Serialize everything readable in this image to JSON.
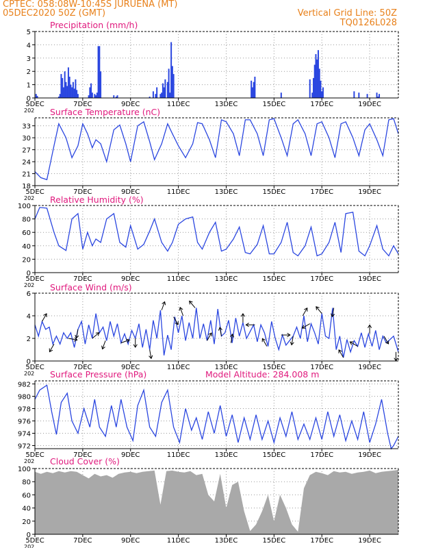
{
  "header": {
    "line1": "CPTEC:   058:08W-10:45S   JURUENA (MT)",
    "line2": "05DEC2020 50Z (GMT)",
    "right1": "Vertical Grid Line: 50Z",
    "right2": "TQ0126L028"
  },
  "model_altitude_text": "Model Altitude: 284.008 m",
  "colors": {
    "header": "#e8801a",
    "title": "#e0197d",
    "series": "#2a46e0",
    "cloud": "#a9a9a9"
  },
  "x_ticks": [
    "5DEC",
    "7DEC",
    "9DEC",
    "11DEC",
    "13DEC",
    "15DEC",
    "17DEC",
    "19DEC"
  ],
  "x_tick_stub": "202",
  "chart_data": [
    {
      "id": "precip",
      "type": "bar",
      "title": "Precipitation (mm/h)",
      "xlim": [
        5,
        20.2
      ],
      "ylim": [
        0,
        5
      ],
      "yticks": [
        0,
        1,
        2,
        3,
        4,
        5
      ],
      "x_unit": "day of Dec 2020",
      "x": [
        5.05,
        5.1,
        6.0,
        6.05,
        6.1,
        6.15,
        6.2,
        6.25,
        6.3,
        6.35,
        6.4,
        6.45,
        6.5,
        6.55,
        6.6,
        6.65,
        6.7,
        6.75,
        6.8,
        7.25,
        7.3,
        7.35,
        7.4,
        7.5,
        7.55,
        7.6,
        7.65,
        7.7,
        7.75,
        8.3,
        8.4,
        8.45,
        9.8,
        9.95,
        10.05,
        10.1,
        10.25,
        10.3,
        10.35,
        10.4,
        10.45,
        10.55,
        10.6,
        10.65,
        10.7,
        10.75,
        10.8,
        14.05,
        14.1,
        14.15,
        14.2,
        15.3,
        16.5,
        16.6,
        16.65,
        16.7,
        16.75,
        16.8,
        16.85,
        16.9,
        16.95,
        17.0,
        17.05,
        18.35,
        18.55,
        18.9,
        19.3,
        19.35,
        19.4
      ],
      "values": [
        0.3,
        0.15,
        0.1,
        0.3,
        1.8,
        1.5,
        0.8,
        2.0,
        1.2,
        0.9,
        2.3,
        1.6,
        1.0,
        0.8,
        1.2,
        0.7,
        1.4,
        0.6,
        0.3,
        0.2,
        0.8,
        1.1,
        0.4,
        0.3,
        0.2,
        0.4,
        3.9,
        3.9,
        2.0,
        0.2,
        0.1,
        0.2,
        0.1,
        0.5,
        0.3,
        0.8,
        0.3,
        0.4,
        1.1,
        0.8,
        1.4,
        1.2,
        2.2,
        0.4,
        4.2,
        2.4,
        1.8,
        1.3,
        0.8,
        1.2,
        1.6,
        0.4,
        1.4,
        0.4,
        1.5,
        2.5,
        3.3,
        2.9,
        3.6,
        2.2,
        1.3,
        0.5,
        0.8,
        0.5,
        0.4,
        0.3,
        0.4,
        0.1,
        0.3
      ]
    },
    {
      "id": "temp",
      "type": "line",
      "title": "Surface Temperature (nC)",
      "xlim": [
        5,
        20.2
      ],
      "ylim": [
        18,
        35
      ],
      "yticks": [
        18,
        21,
        24,
        27,
        30,
        33
      ],
      "x": [
        5.0,
        5.25,
        5.5,
        5.8,
        6.0,
        6.3,
        6.55,
        6.8,
        7.0,
        7.2,
        7.4,
        7.55,
        7.75,
        8.0,
        8.3,
        8.55,
        8.8,
        9.0,
        9.3,
        9.55,
        9.8,
        10.0,
        10.3,
        10.55,
        10.75,
        11.0,
        11.3,
        11.6,
        11.8,
        12.0,
        12.3,
        12.55,
        12.8,
        13.0,
        13.3,
        13.55,
        13.8,
        14.0,
        14.3,
        14.55,
        14.8,
        15.0,
        15.3,
        15.55,
        15.8,
        16.0,
        16.3,
        16.55,
        16.8,
        17.0,
        17.3,
        17.55,
        17.8,
        18.0,
        18.3,
        18.55,
        18.8,
        19.0,
        19.3,
        19.55,
        19.8,
        20.0,
        20.2
      ],
      "values": [
        21.5,
        20.0,
        19.5,
        28.0,
        33.5,
        30.0,
        25.0,
        28.0,
        33.5,
        31.0,
        27.5,
        29.5,
        28.5,
        24.0,
        32.0,
        33.2,
        28.5,
        24.0,
        33.0,
        34.0,
        29.0,
        24.5,
        28.5,
        33.5,
        31.0,
        28.0,
        25.0,
        28.5,
        33.8,
        33.5,
        29.5,
        25.0,
        34.5,
        34.0,
        31.0,
        25.5,
        34.5,
        34.5,
        31.0,
        25.5,
        34.5,
        34.8,
        30.0,
        25.5,
        33.5,
        34.5,
        31.0,
        25.5,
        33.5,
        34.0,
        30.0,
        25.0,
        33.5,
        34.0,
        30.0,
        25.5,
        32.0,
        33.5,
        29.5,
        25.5,
        34.5,
        34.8,
        31.0
      ]
    },
    {
      "id": "rh",
      "type": "line",
      "title": "Relative Humidity (%)",
      "xlim": [
        5,
        20.2
      ],
      "ylim": [
        0,
        100
      ],
      "yticks": [
        0,
        20,
        40,
        60,
        80,
        100
      ],
      "x": [
        5.0,
        5.2,
        5.5,
        5.8,
        6.0,
        6.3,
        6.55,
        6.8,
        7.0,
        7.2,
        7.4,
        7.55,
        7.75,
        8.0,
        8.3,
        8.55,
        8.8,
        9.0,
        9.3,
        9.55,
        9.8,
        10.0,
        10.3,
        10.55,
        10.75,
        11.0,
        11.3,
        11.6,
        11.8,
        12.0,
        12.3,
        12.55,
        12.8,
        13.0,
        13.3,
        13.55,
        13.8,
        14.0,
        14.3,
        14.55,
        14.8,
        15.0,
        15.3,
        15.55,
        15.8,
        16.0,
        16.3,
        16.55,
        16.8,
        17.0,
        17.3,
        17.55,
        17.8,
        18.0,
        18.3,
        18.55,
        18.8,
        19.0,
        19.3,
        19.55,
        19.8,
        20.0,
        20.2
      ],
      "values": [
        80,
        97,
        96,
        60,
        40,
        33,
        80,
        88,
        35,
        60,
        40,
        50,
        45,
        80,
        88,
        45,
        38,
        70,
        35,
        42,
        62,
        80,
        45,
        32,
        45,
        72,
        80,
        83,
        45,
        35,
        60,
        75,
        32,
        35,
        50,
        68,
        30,
        28,
        42,
        70,
        28,
        28,
        45,
        75,
        30,
        25,
        40,
        68,
        25,
        28,
        45,
        75,
        30,
        88,
        90,
        32,
        25,
        40,
        70,
        35,
        25,
        40,
        28
      ]
    },
    {
      "id": "wind",
      "type": "line",
      "title": "Surface Wind (m/s)",
      "xlim": [
        5,
        20.2
      ],
      "ylim": [
        0,
        6
      ],
      "yticks": [
        0,
        2,
        4,
        6
      ],
      "x": [
        5.0,
        5.15,
        5.3,
        5.45,
        5.6,
        5.75,
        5.9,
        6.05,
        6.2,
        6.35,
        6.5,
        6.65,
        6.8,
        6.95,
        7.1,
        7.25,
        7.4,
        7.55,
        7.7,
        7.85,
        8.0,
        8.15,
        8.3,
        8.45,
        8.6,
        8.75,
        8.9,
        9.05,
        9.2,
        9.35,
        9.5,
        9.65,
        9.8,
        9.95,
        10.1,
        10.25,
        10.4,
        10.55,
        10.7,
        10.85,
        11.0,
        11.15,
        11.3,
        11.45,
        11.6,
        11.75,
        11.9,
        12.05,
        12.2,
        12.35,
        12.5,
        12.65,
        12.8,
        12.95,
        13.1,
        13.25,
        13.4,
        13.55,
        13.7,
        13.85,
        14.0,
        14.15,
        14.3,
        14.45,
        14.6,
        14.75,
        14.9,
        15.05,
        15.2,
        15.35,
        15.5,
        15.65,
        15.8,
        15.95,
        16.1,
        16.25,
        16.4,
        16.55,
        16.7,
        16.85,
        17.0,
        17.15,
        17.3,
        17.45,
        17.6,
        17.75,
        17.9,
        18.05,
        18.2,
        18.35,
        18.5,
        18.65,
        18.8,
        18.95,
        19.1,
        19.25,
        19.4,
        19.55,
        19.7,
        19.85,
        20.0,
        20.2
      ],
      "values": [
        3.2,
        2.2,
        3.5,
        2.8,
        3.0,
        1.5,
        2.2,
        1.5,
        2.5,
        2.0,
        2.5,
        1.2,
        2.8,
        3.5,
        1.5,
        3.2,
        2.0,
        4.2,
        2.5,
        3.0,
        1.8,
        3.5,
        2.2,
        3.3,
        1.6,
        2.4,
        1.5,
        2.7,
        2.0,
        3.3,
        1.2,
        2.8,
        1.0,
        3.6,
        2.0,
        4.5,
        0.5,
        2.3,
        1.0,
        3.9,
        2.5,
        4.0,
        1.8,
        3.4,
        2.0,
        4.7,
        2.0,
        3.3,
        1.8,
        3.6,
        1.5,
        4.6,
        2.2,
        2.5,
        3.6,
        1.6,
        3.8,
        2.2,
        3.4,
        2.0,
        2.6,
        3.2,
        1.7,
        3.2,
        2.5,
        1.3,
        3.5,
        2.0,
        1.0,
        2.3,
        1.4,
        1.8,
        2.2,
        3.0,
        2.0,
        4.0,
        1.7,
        3.3,
        2.5,
        1.5,
        4.2,
        2.2,
        2.0,
        4.7,
        1.0,
        2.2,
        0.3,
        1.9,
        0.8,
        1.8,
        1.3,
        2.5,
        1.2,
        2.4,
        1.3,
        2.7,
        1.0,
        2.2,
        1.6,
        1.9,
        2.2,
        0.8
      ]
    },
    {
      "id": "pressure",
      "type": "line",
      "title": "Surface Pressure (hPa)",
      "xlim": [
        5,
        20.2
      ],
      "ylim": [
        971.5,
        982.5
      ],
      "yticks": [
        972,
        974,
        976,
        978,
        980,
        982
      ],
      "x": [
        5.0,
        5.2,
        5.5,
        5.7,
        5.9,
        6.1,
        6.35,
        6.55,
        6.8,
        7.05,
        7.3,
        7.5,
        7.7,
        7.95,
        8.2,
        8.4,
        8.6,
        8.85,
        9.1,
        9.3,
        9.55,
        9.8,
        10.05,
        10.3,
        10.55,
        10.8,
        11.05,
        11.3,
        11.55,
        11.75,
        12.0,
        12.25,
        12.5,
        12.75,
        13.0,
        13.25,
        13.5,
        13.75,
        14.0,
        14.25,
        14.5,
        14.75,
        15.0,
        15.25,
        15.5,
        15.75,
        16.0,
        16.25,
        16.5,
        16.75,
        17.0,
        17.25,
        17.5,
        17.75,
        18.0,
        18.25,
        18.5,
        18.75,
        19.0,
        19.25,
        19.5,
        19.75,
        19.9,
        20.0,
        20.2
      ],
      "values": [
        979.5,
        981.0,
        981.8,
        977.5,
        973.8,
        979.0,
        980.5,
        976.0,
        974.0,
        978.0,
        975.0,
        979.5,
        975.0,
        973.5,
        978.5,
        975.0,
        979.5,
        975.0,
        972.8,
        978.5,
        981.0,
        975.0,
        973.5,
        979.0,
        981.0,
        975.0,
        972.5,
        978.0,
        974.5,
        976.5,
        973.0,
        977.5,
        974.0,
        978.5,
        973.5,
        977.0,
        972.5,
        976.5,
        973.0,
        977.0,
        973.0,
        976.0,
        972.5,
        976.5,
        973.5,
        977.5,
        973.0,
        975.5,
        973.0,
        976.5,
        973.0,
        977.5,
        973.5,
        977.0,
        972.8,
        976.0,
        973.0,
        977.5,
        972.5,
        975.5,
        979.5,
        974.0,
        971.5,
        972.0,
        973.5
      ]
    },
    {
      "id": "cloud",
      "type": "area",
      "title": "Cloud Cover (%)",
      "xlim": [
        5,
        20.2
      ],
      "ylim": [
        0,
        100
      ],
      "yticks": [
        0,
        20,
        40,
        60,
        80,
        100
      ],
      "x": [
        5.0,
        5.25,
        5.5,
        5.75,
        6.0,
        6.25,
        6.5,
        6.75,
        7.0,
        7.25,
        7.5,
        7.75,
        8.0,
        8.25,
        8.5,
        8.75,
        9.0,
        9.25,
        9.5,
        9.75,
        10.0,
        10.25,
        10.5,
        10.75,
        11.0,
        11.25,
        11.5,
        11.75,
        12.0,
        12.25,
        12.5,
        12.75,
        13.0,
        13.25,
        13.5,
        13.75,
        14.0,
        14.25,
        14.5,
        14.75,
        15.0,
        15.25,
        15.5,
        15.75,
        16.0,
        16.25,
        16.5,
        16.75,
        17.0,
        17.25,
        17.5,
        17.75,
        18.0,
        18.25,
        18.5,
        18.75,
        19.0,
        19.25,
        19.5,
        19.75,
        20.0,
        20.2
      ],
      "values": [
        95,
        92,
        95,
        93,
        96,
        94,
        96,
        95,
        90,
        85,
        92,
        88,
        90,
        86,
        92,
        94,
        95,
        93,
        95,
        96,
        97,
        45,
        96,
        97,
        95,
        94,
        96,
        90,
        92,
        60,
        50,
        92,
        40,
        75,
        80,
        35,
        5,
        15,
        35,
        60,
        20,
        60,
        40,
        15,
        4,
        70,
        90,
        95,
        93,
        90,
        96,
        94,
        95,
        92,
        94,
        95,
        97,
        93,
        95,
        96,
        97,
        98
      ]
    }
  ],
  "wind_arrows": [
    {
      "x": 5.3,
      "angle": -60
    },
    {
      "x": 5.8,
      "angle": 120
    },
    {
      "x": 6.4,
      "angle": 10
    },
    {
      "x": 6.8,
      "angle": 100
    },
    {
      "x": 7.4,
      "angle": -40
    },
    {
      "x": 7.95,
      "angle": 110
    },
    {
      "x": 8.6,
      "angle": -20
    },
    {
      "x": 9.2,
      "angle": 90
    },
    {
      "x": 9.8,
      "angle": 80
    },
    {
      "x": 10.3,
      "angle": -70
    },
    {
      "x": 10.8,
      "angle": 60
    },
    {
      "x": 11.2,
      "angle": -110
    },
    {
      "x": 11.7,
      "angle": -130
    },
    {
      "x": 12.2,
      "angle": -60
    },
    {
      "x": 12.8,
      "angle": -100
    },
    {
      "x": 13.2,
      "angle": -80
    },
    {
      "x": 13.7,
      "angle": -90
    },
    {
      "x": 14.2,
      "angle": 180
    },
    {
      "x": 14.7,
      "angle": -120
    },
    {
      "x": 15.3,
      "angle": 0
    },
    {
      "x": 15.8,
      "angle": 100
    },
    {
      "x": 16.2,
      "angle": -60
    },
    {
      "x": 16.5,
      "angle": 150
    },
    {
      "x": 17.0,
      "angle": -130
    },
    {
      "x": 17.5,
      "angle": 100
    },
    {
      "x": 17.9,
      "angle": -120
    },
    {
      "x": 18.5,
      "angle": -150
    },
    {
      "x": 19.0,
      "angle": -90
    },
    {
      "x": 19.6,
      "angle": 60
    },
    {
      "x": 20.1,
      "angle": 90
    }
  ]
}
